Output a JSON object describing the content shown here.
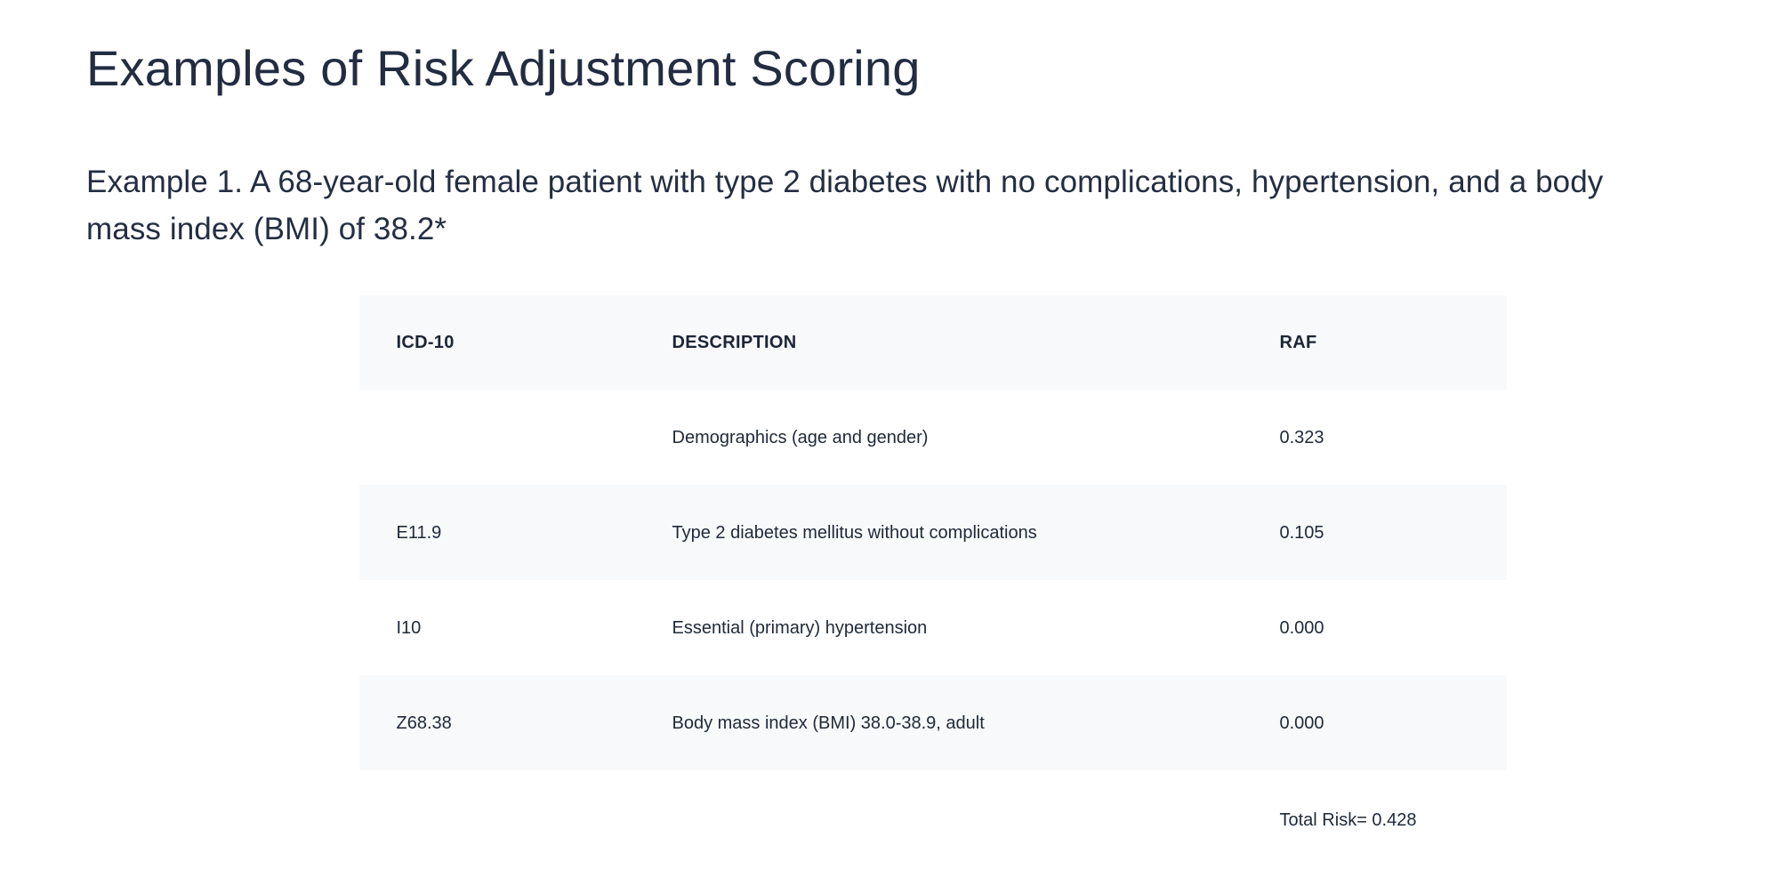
{
  "page": {
    "title": "Examples of Risk Adjustment Scoring",
    "intro_lines": [
      "Example 1. A 68-year-old female patient with type 2 diabetes with no complications, hypertension, and a body",
      "mass index (BMI) of 38.2*"
    ]
  },
  "table": {
    "headers": {
      "icd10": "ICD-10",
      "description": "DESCRIPTION",
      "raf": "RAF"
    },
    "rows": [
      {
        "icd10": "",
        "description": "Demographics (age and gender)",
        "raf": "0.323"
      },
      {
        "icd10": "E11.9",
        "description": "Type 2 diabetes mellitus without complications",
        "raf": "0.105"
      },
      {
        "icd10": "I10",
        "description": "Essential (primary) hypertension",
        "raf": "0.000"
      },
      {
        "icd10": "Z68.38",
        "description": "Body mass index (BMI) 38.0-38.9, adult",
        "raf": "0.000"
      }
    ],
    "total_label": "Total Risk= 0.428"
  },
  "colors": {
    "text_navy": "#232e42",
    "table_alt_row_bg": "#f8f9fa",
    "page_bg": "#ffffff"
  }
}
